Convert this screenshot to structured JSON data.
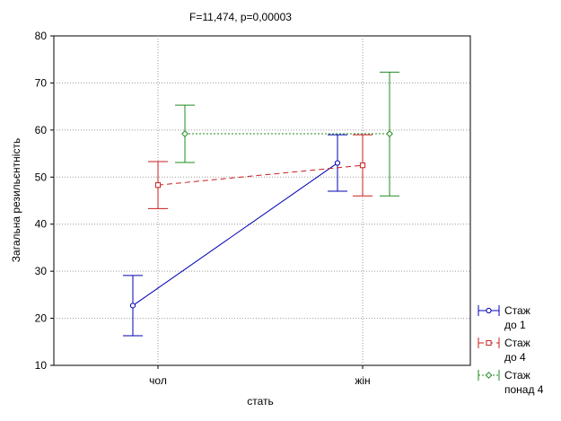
{
  "chart_data": {
    "type": "line",
    "title": "F=11,474, p=0,00003",
    "xlabel": "стать",
    "ylabel": "Загальна резильєнтність",
    "categories": [
      "чол",
      "жін"
    ],
    "ylim": [
      10,
      80
    ],
    "yticks": [
      10,
      20,
      30,
      40,
      50,
      60,
      70,
      80
    ],
    "grid": true,
    "legend_placement": "right-bottom",
    "series": [
      {
        "name_lines": [
          "Стаж",
          "до 1"
        ],
        "color": "#0000b4",
        "line_style": "solid",
        "marker": "circle",
        "values": [
          22.7,
          53.0
        ],
        "lower": [
          16.3,
          47.0
        ],
        "upper": [
          29.1,
          59.0
        ]
      },
      {
        "name_lines": [
          "Стаж",
          "до 4"
        ],
        "color": "#c81e1e",
        "line_style": "dashed",
        "marker": "square",
        "values": [
          48.3,
          52.5
        ],
        "lower": [
          43.3,
          46.0
        ],
        "upper": [
          53.3,
          59.0
        ]
      },
      {
        "name_lines": [
          "Стаж",
          "понад 4"
        ],
        "color": "#1e8c1e",
        "line_style": "dotted",
        "marker": "diamond",
        "values": [
          59.2,
          59.2
        ],
        "lower": [
          53.1,
          46.0
        ],
        "upper": [
          65.3,
          72.3
        ]
      }
    ]
  }
}
